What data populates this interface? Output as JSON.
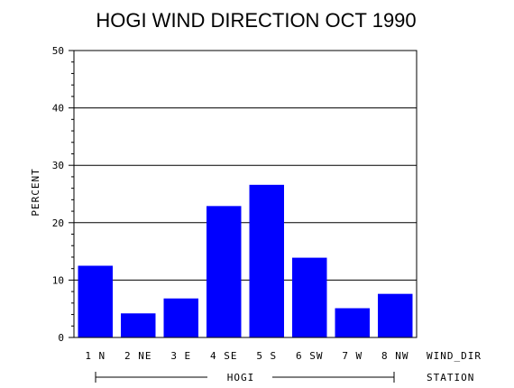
{
  "chart_data": {
    "type": "bar",
    "title": "HOGI WIND DIRECTION OCT 1990",
    "ylabel": "PERCENT",
    "xlabel": "WIND_DIR",
    "group_axis_label": "STATION",
    "group_label": "HOGI",
    "categories": [
      "1 N",
      "2 NE",
      "3 E",
      "4 SE",
      "5 S",
      "6 SW",
      "7 W",
      "8 NW"
    ],
    "values": [
      12.5,
      4.2,
      6.8,
      22.9,
      26.6,
      13.9,
      5.1,
      7.6
    ],
    "ylim": [
      0,
      50
    ],
    "yticks": [
      "0",
      "10",
      "20",
      "30",
      "40",
      "50"
    ],
    "grid": true,
    "bar_color": "#0000ff"
  }
}
